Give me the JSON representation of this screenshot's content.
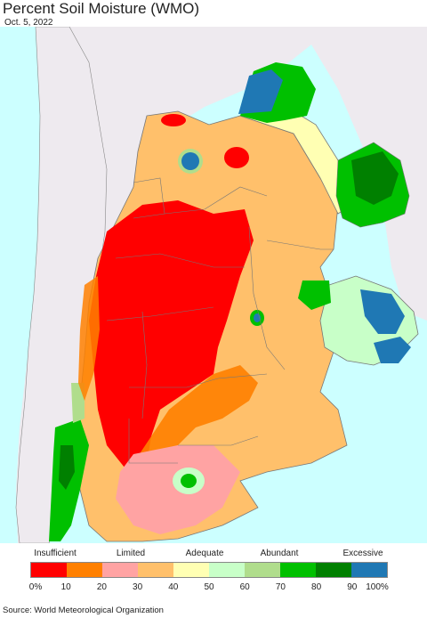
{
  "title": "Percent Soil Moisture (WMO)",
  "date": "Oct. 5, 2022",
  "legend": {
    "categories": [
      "Insufficient",
      "Limited",
      "Adequate",
      "Abundant",
      "Excessive"
    ],
    "ticks": [
      "0%",
      "10",
      "20",
      "30",
      "40",
      "50",
      "60",
      "70",
      "80",
      "90",
      "100%"
    ],
    "colors": [
      "#ff0000",
      "#ff8000",
      "#ffa3a3",
      "#ffc06b",
      "#ffffb3",
      "#c8ffc8",
      "#b0dd8c",
      "#00c000",
      "#008000",
      "#1f78b4"
    ]
  },
  "source": "Source: World Meteorological Organization",
  "map_colors": {
    "ocean": "#ccffff",
    "land_outside": "#eeeaef",
    "border": "#777777"
  }
}
